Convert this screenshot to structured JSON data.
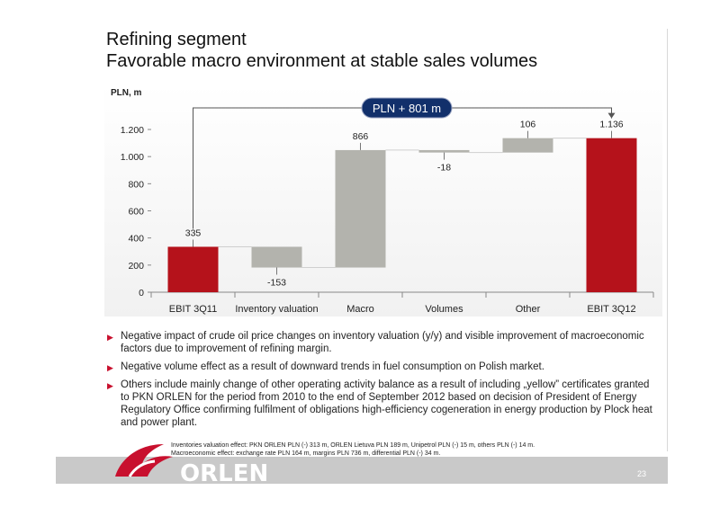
{
  "slide": {
    "title_line1": "Refining segment",
    "title_line2": "Favorable macro environment at stable sales volumes",
    "unit_label": "PLN, m",
    "page_number": "23"
  },
  "chart_data": {
    "type": "bar",
    "subtype": "waterfall",
    "categories": [
      "EBIT 3Q11",
      "Inventory valuation",
      "Macro",
      "Volumes",
      "Other",
      "EBIT 3Q12"
    ],
    "values": [
      335,
      -153,
      866,
      -18,
      106,
      1136
    ],
    "value_labels": [
      "335",
      "-153",
      "866",
      "-18",
      "106",
      "1.136"
    ],
    "is_total": [
      true,
      false,
      false,
      false,
      false,
      true
    ],
    "bases": [
      0,
      335,
      182,
      1048,
      1030,
      0
    ],
    "ylim": [
      0,
      1200
    ],
    "yticks": [
      0,
      200,
      400,
      600,
      800,
      1000,
      1200
    ],
    "ytick_labels": [
      "0",
      "200",
      "400",
      "600",
      "800",
      "1.000",
      "1.200"
    ],
    "ylabel": "PLN, m",
    "annotation": "PLN + 801 m",
    "grid": false,
    "colors": {
      "total": "#b5121b",
      "delta": "#b3b3ad",
      "connector": "#888888"
    }
  },
  "bullets": [
    "Negative impact of crude oil price changes on inventory valuation (y/y) and visible improvement of macroeconomic factors due to improvement of refining margin.",
    "Negative volume effect as a result of downward trends in fuel consumption on Polish market.",
    "Others include mainly change of other operating activity balance as a result of including „yellow” certificates granted  to PKN ORLEN for the period from 2010 to the end of September 2012 based on decision of President of Energy Regulatory Office confirming fulfilment of obligations high-efficiency cogeneration in energy production by Plock heat and power plant."
  ],
  "footnotes": {
    "line1": "Inventories valuation effect: PKN ORLEN PLN (-) 313 m, ORLEN Lietuva PLN 189 m, Unipetrol PLN (-) 15 m, others PLN (-) 14 m.",
    "line2": "Macroeconomic effect: exchange rate PLN 164 m, margins PLN 736 m, differential PLN (-) 34 m."
  },
  "logo": {
    "text": "ORLEN",
    "icon": "orlen-eagle-icon"
  }
}
